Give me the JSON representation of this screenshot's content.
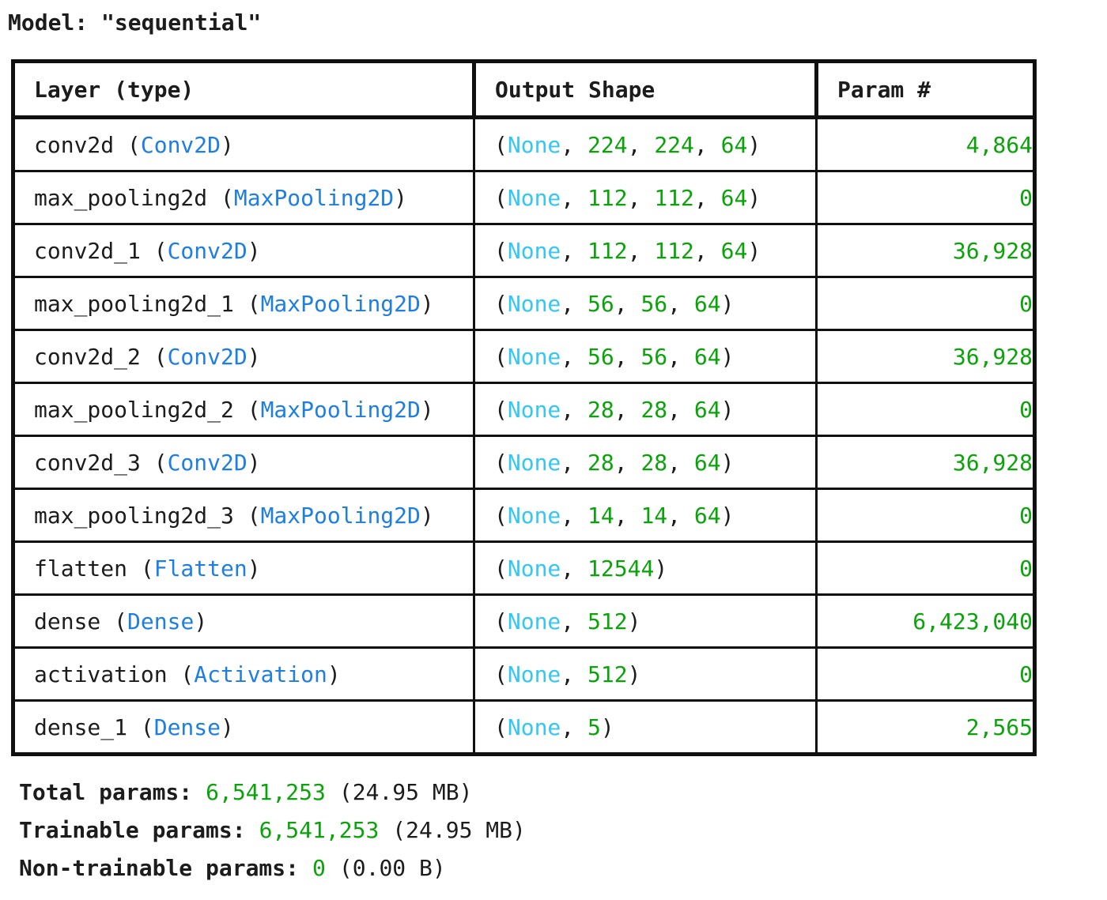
{
  "title": "Model: \"sequential\"",
  "colors": {
    "text": "#1c1c1c",
    "border": "#101010",
    "blue": "#1d7ee3",
    "cyan": "#33c7f3",
    "green": "#0aa40a"
  },
  "table": {
    "headers": [
      "Layer (type)",
      "Output Shape",
      "Param #"
    ],
    "layers": [
      {
        "name": "conv2d",
        "class_name": "Conv2D",
        "shape": [
          "None",
          "224",
          "224",
          "64"
        ],
        "params": "4,864"
      },
      {
        "name": "max_pooling2d",
        "class_name": "MaxPooling2D",
        "shape": [
          "None",
          "112",
          "112",
          "64"
        ],
        "params": "0"
      },
      {
        "name": "conv2d_1",
        "class_name": "Conv2D",
        "shape": [
          "None",
          "112",
          "112",
          "64"
        ],
        "params": "36,928"
      },
      {
        "name": "max_pooling2d_1",
        "class_name": "MaxPooling2D",
        "shape": [
          "None",
          "56",
          "56",
          "64"
        ],
        "params": "0"
      },
      {
        "name": "conv2d_2",
        "class_name": "Conv2D",
        "shape": [
          "None",
          "56",
          "56",
          "64"
        ],
        "params": "36,928"
      },
      {
        "name": "max_pooling2d_2",
        "class_name": "MaxPooling2D",
        "shape": [
          "None",
          "28",
          "28",
          "64"
        ],
        "params": "0"
      },
      {
        "name": "conv2d_3",
        "class_name": "Conv2D",
        "shape": [
          "None",
          "28",
          "28",
          "64"
        ],
        "params": "36,928"
      },
      {
        "name": "max_pooling2d_3",
        "class_name": "MaxPooling2D",
        "shape": [
          "None",
          "14",
          "14",
          "64"
        ],
        "params": "0"
      },
      {
        "name": "flatten",
        "class_name": "Flatten",
        "shape": [
          "None",
          "12544"
        ],
        "params": "0"
      },
      {
        "name": "dense",
        "class_name": "Dense",
        "shape": [
          "None",
          "512"
        ],
        "params": "6,423,040"
      },
      {
        "name": "activation",
        "class_name": "Activation",
        "shape": [
          "None",
          "512"
        ],
        "params": "0"
      },
      {
        "name": "dense_1",
        "class_name": "Dense",
        "shape": [
          "None",
          "5"
        ],
        "params": "2,565"
      }
    ]
  },
  "totals": [
    {
      "label": "Total params:",
      "value": "6,541,253",
      "size": "(24.95 MB)"
    },
    {
      "label": "Trainable params:",
      "value": "6,541,253",
      "size": "(24.95 MB)"
    },
    {
      "label": "Non-trainable params:",
      "value": "0",
      "size": "(0.00 B)"
    }
  ]
}
